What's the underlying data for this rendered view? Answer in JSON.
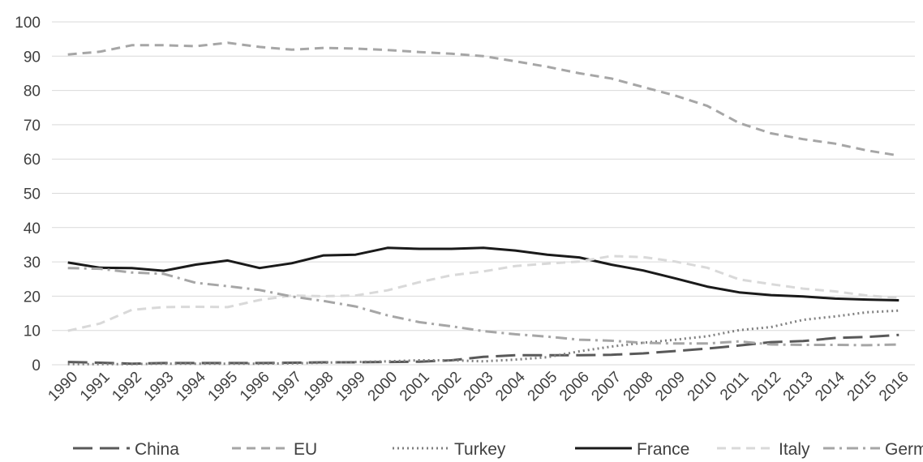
{
  "chart_data": {
    "type": "line",
    "title": "",
    "xlabel": "",
    "ylabel": "",
    "ylim": [
      0,
      100
    ],
    "yticks": [
      0,
      10,
      20,
      30,
      40,
      50,
      60,
      70,
      80,
      90,
      100
    ],
    "grid": "horizontal",
    "legend_position": "bottom",
    "x": [
      "1990",
      "1991",
      "1992",
      "1993",
      "1994",
      "1995",
      "1996",
      "1997",
      "1998",
      "1999",
      "2000",
      "2001",
      "2002",
      "2003",
      "2004",
      "2005",
      "2006",
      "2007",
      "2008",
      "2009",
      "2010",
      "2011",
      "2012",
      "2013",
      "2014",
      "2015",
      "2016"
    ],
    "series": [
      {
        "name": "China",
        "color": "#595959",
        "dash": "long-dash",
        "values": [
          0.8,
          0.6,
          0.3,
          0.5,
          0.5,
          0.5,
          0.5,
          0.6,
          0.7,
          0.7,
          0.8,
          0.9,
          1.3,
          2.3,
          2.8,
          2.8,
          2.8,
          2.9,
          3.3,
          4.0,
          4.7,
          5.6,
          6.6,
          6.9,
          7.8,
          8.1,
          8.7
        ]
      },
      {
        "name": "EU",
        "color": "#a6a6a6",
        "dash": "dash",
        "values": [
          90.5,
          91.3,
          93.2,
          93.2,
          92.9,
          93.9,
          92.7,
          91.9,
          92.4,
          92.2,
          91.8,
          91.2,
          90.7,
          90.0,
          88.5,
          86.9,
          85.0,
          83.5,
          81.0,
          78.5,
          75.5,
          70.5,
          67.5,
          65.8,
          64.5,
          62.5,
          61.0
        ]
      },
      {
        "name": "Turkey",
        "color": "#7f7f7f",
        "dash": "dot",
        "values": [
          0.2,
          0.2,
          0.2,
          0.3,
          0.3,
          0.3,
          0.3,
          0.4,
          0.6,
          0.8,
          1.0,
          1.3,
          1.3,
          1.0,
          1.5,
          2.2,
          3.9,
          5.3,
          6.4,
          7.3,
          8.3,
          10.1,
          11.0,
          13.1,
          14.1,
          15.3,
          15.8
        ]
      },
      {
        "name": "France",
        "color": "#1a1a1a",
        "dash": "solid",
        "values": [
          29.8,
          28.3,
          28.2,
          27.4,
          29.2,
          30.4,
          28.2,
          29.6,
          31.9,
          32.1,
          34.1,
          33.8,
          33.8,
          34.1,
          33.3,
          32.1,
          31.3,
          29.2,
          27.5,
          25.2,
          22.8,
          21.1,
          20.3,
          19.9,
          19.3,
          19.0,
          18.8
        ]
      },
      {
        "name": "Italy",
        "color": "#d9d9d9",
        "dash": "dash",
        "values": [
          9.9,
          12.0,
          16.0,
          16.8,
          16.9,
          16.8,
          18.9,
          20.2,
          20.0,
          20.2,
          21.7,
          24.1,
          26.1,
          27.2,
          28.8,
          29.5,
          30.1,
          31.7,
          31.4,
          30.1,
          28.3,
          24.9,
          23.5,
          22.2,
          21.4,
          20.2,
          19.5
        ]
      },
      {
        "name": "Germany",
        "color": "#a6a6a6",
        "dash": "dash-dot",
        "values": [
          28.2,
          28.0,
          26.9,
          26.5,
          23.9,
          22.9,
          21.8,
          19.9,
          18.6,
          17.0,
          14.4,
          12.4,
          11.2,
          9.8,
          8.9,
          8.2,
          7.3,
          7.0,
          6.4,
          6.2,
          6.2,
          6.8,
          5.9,
          5.8,
          5.8,
          5.7,
          5.9
        ]
      }
    ]
  }
}
